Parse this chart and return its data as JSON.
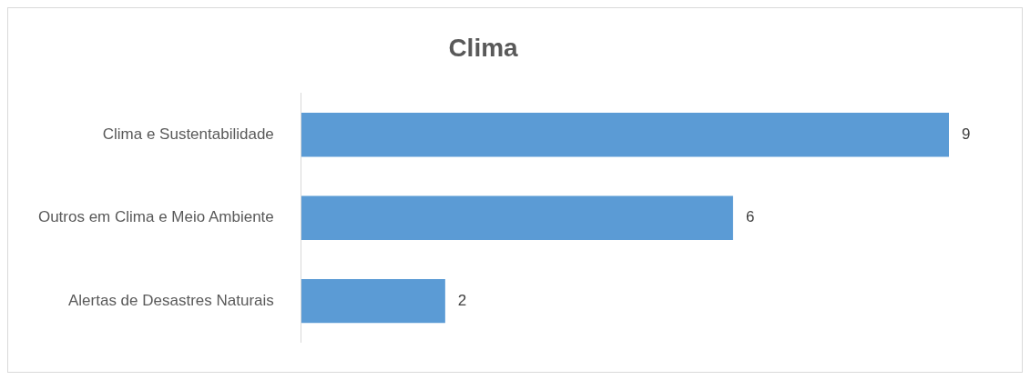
{
  "chart_data": {
    "type": "bar",
    "orientation": "horizontal",
    "title": "Clima",
    "categories": [
      "Clima e Sustentabilidade",
      "Outros em Clima e Meio Ambiente",
      "Alertas de Desastres Naturais"
    ],
    "values": [
      9,
      6,
      2
    ],
    "color": "#5b9bd5",
    "data_labels": true,
    "tick_labels": "y",
    "grid": false,
    "legend": false
  }
}
